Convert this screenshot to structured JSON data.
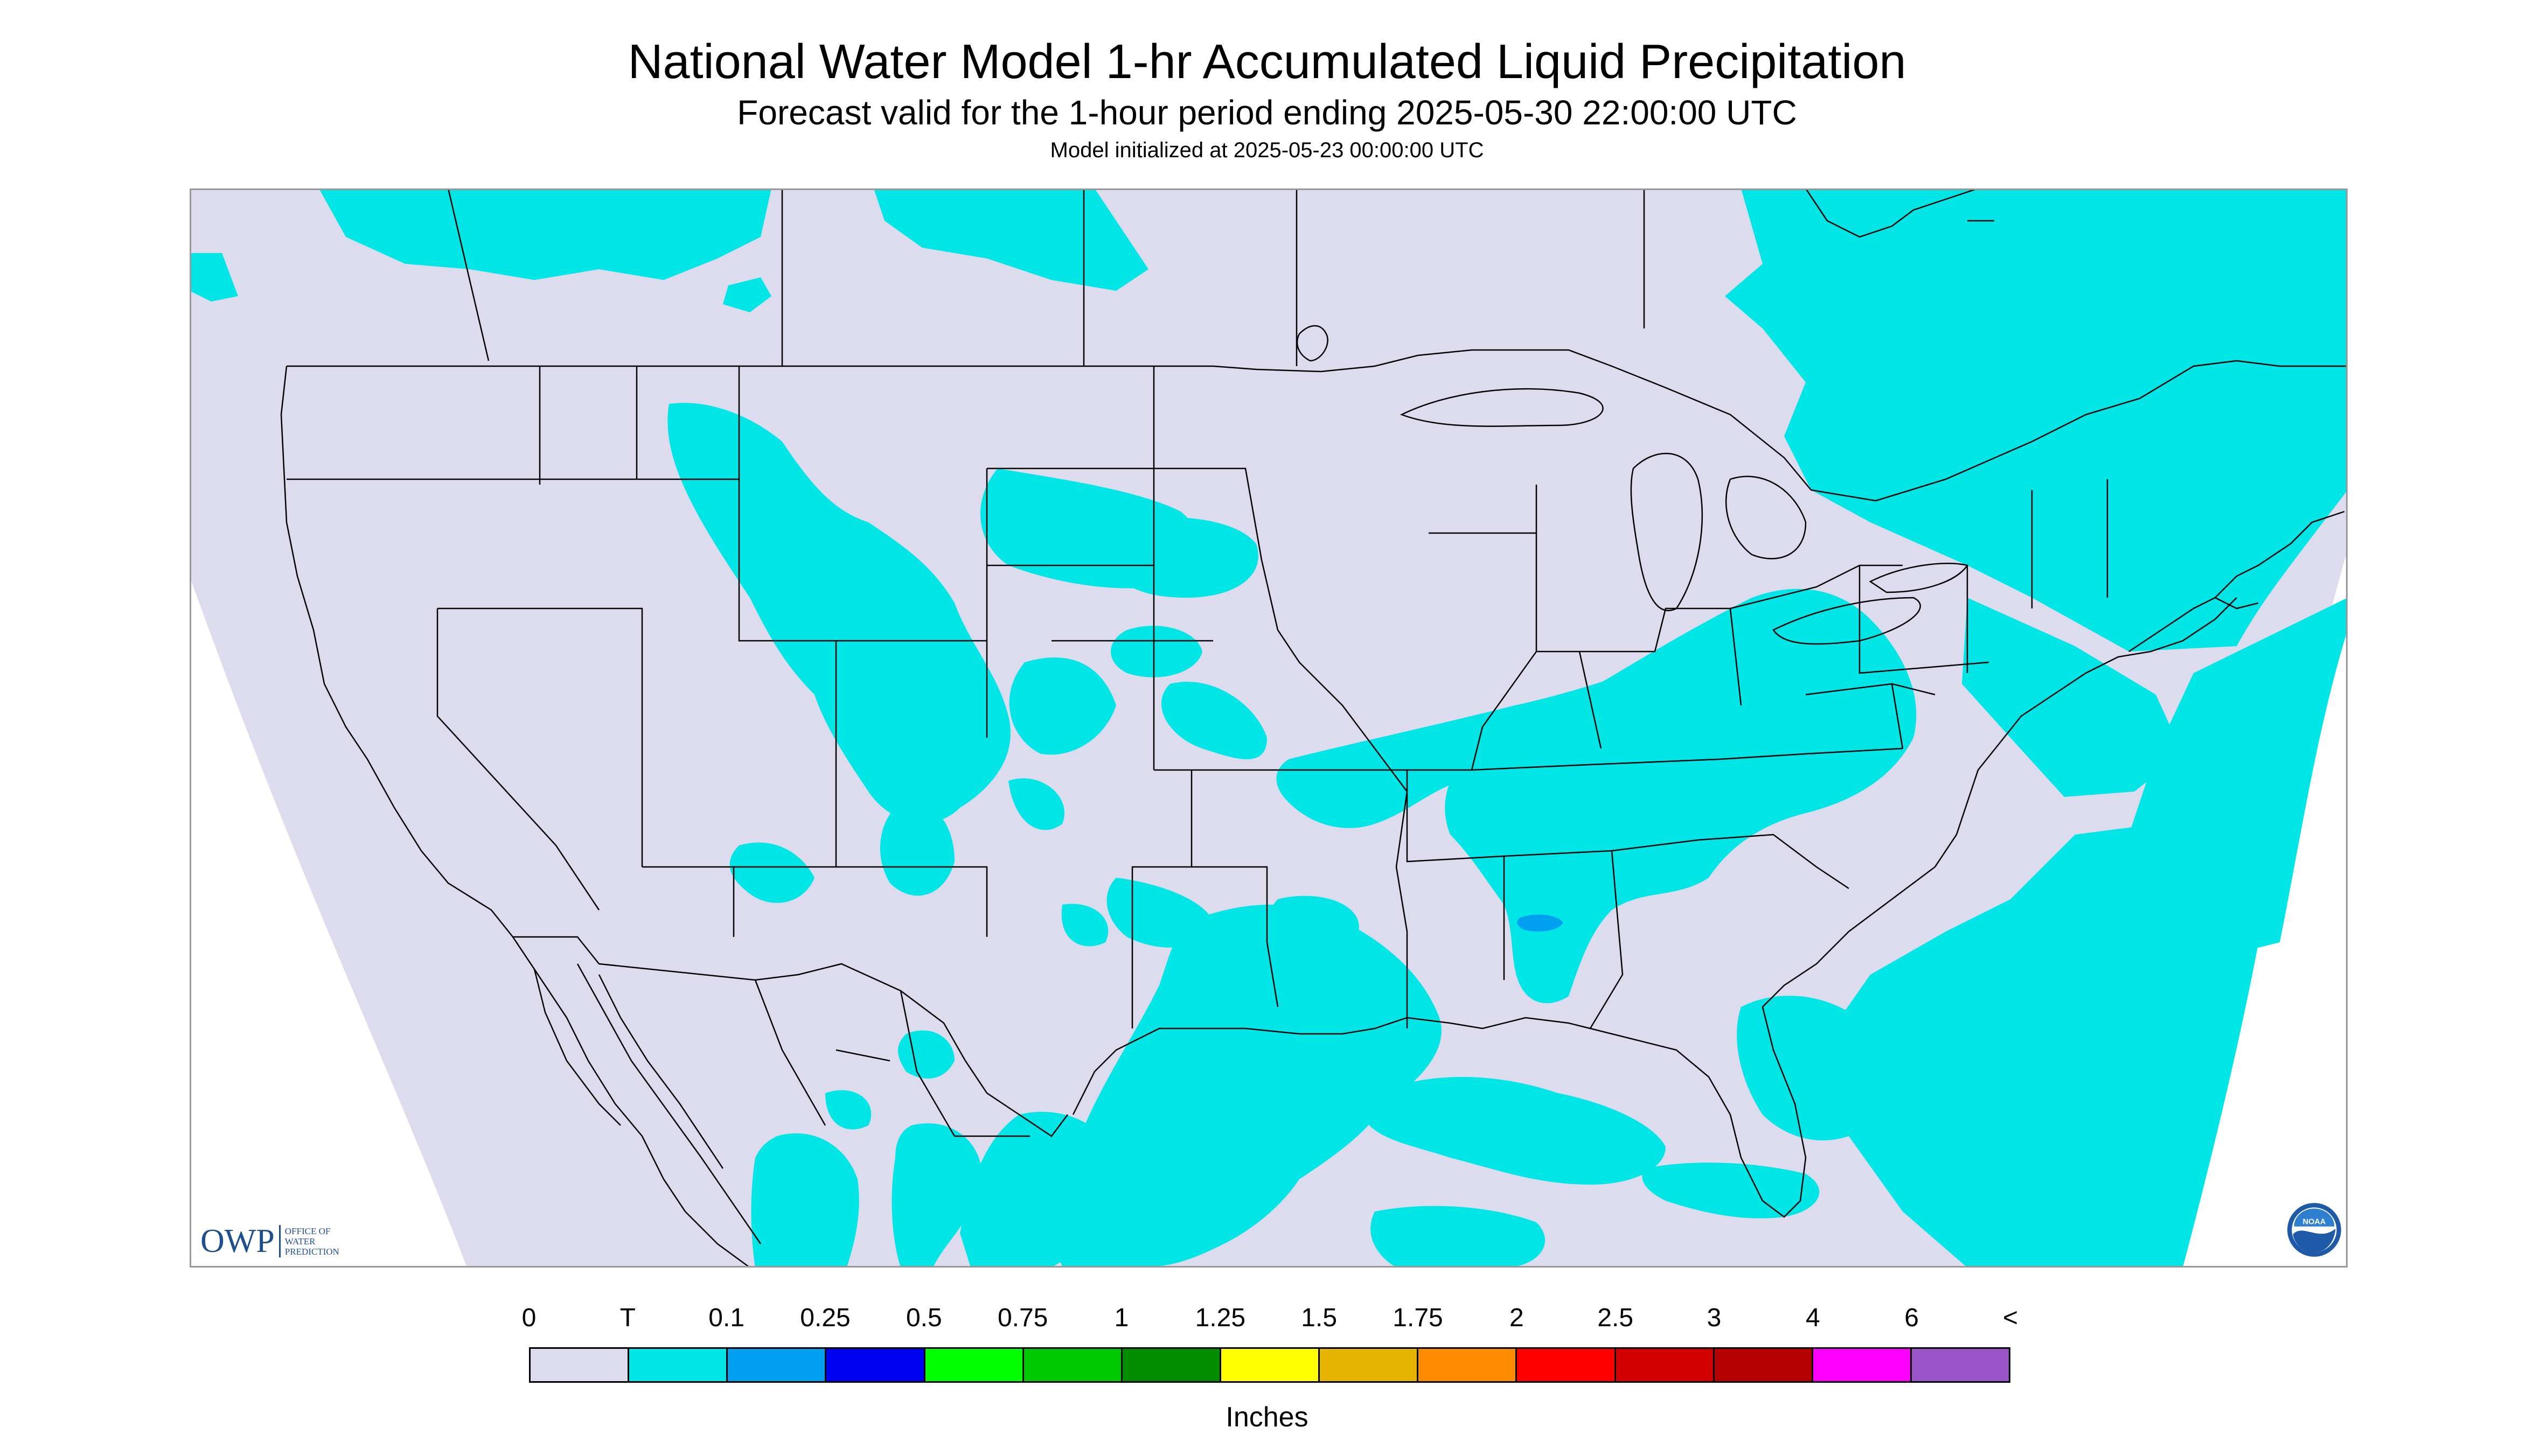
{
  "title": "National Water Model 1-hr Accumulated Liquid Precipitation",
  "subtitle": "Forecast valid for the 1-hour period ending 2025-05-30 22:00:00 UTC",
  "init_time": "Model initialized at 2025-05-23 00:00:00 UTC",
  "legend": {
    "labels": [
      "0",
      "T",
      "0.1",
      "0.25",
      "0.5",
      "0.75",
      "1",
      "1.25",
      "1.5",
      "1.75",
      "2",
      "2.5",
      "3",
      "4",
      "6",
      "<"
    ],
    "colors": [
      "#dcdcee",
      "#00e6e6",
      "#00a0f0",
      "#0000f0",
      "#00ff00",
      "#00c800",
      "#008c00",
      "#ffff00",
      "#e6b400",
      "#ff8c00",
      "#ff0000",
      "#d20000",
      "#b40000",
      "#ff00ff",
      "#9b55c8"
    ],
    "units": "Inches"
  },
  "map": {
    "background_color": "#dcdcee",
    "outside_color": "#ffffff",
    "trace_color": "#00e6e6",
    "light_rain_color": "#00a0f0",
    "boundary_color": "#000000"
  },
  "logos": {
    "owp_mark": "OWP",
    "owp_text": [
      "OFFICE OF",
      "WATER",
      "PREDICTION"
    ],
    "noaa_text": "NOAA"
  }
}
